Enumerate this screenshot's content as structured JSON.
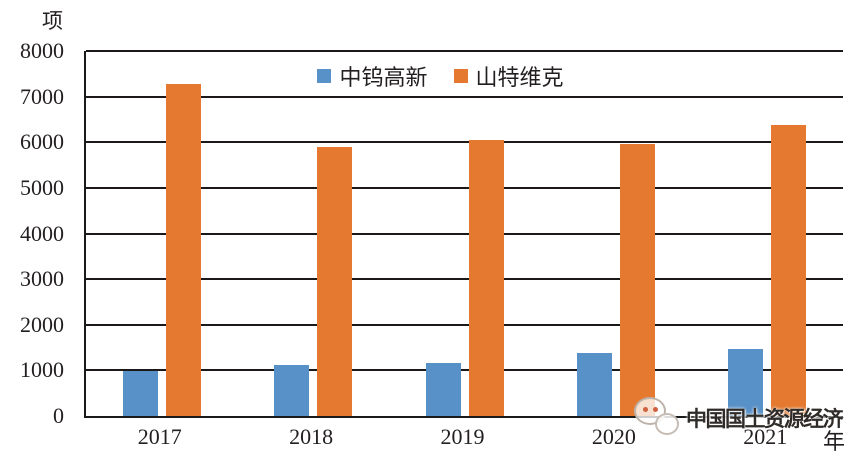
{
  "chart_data": {
    "type": "bar",
    "title": "",
    "categories": [
      "2017",
      "2018",
      "2019",
      "2020",
      "2021"
    ],
    "series": [
      {
        "name": "中钨高新",
        "color": "#5890C8",
        "values": [
          980,
          1120,
          1170,
          1390,
          1470
        ]
      },
      {
        "name": "山特维克",
        "color": "#E4792F",
        "values": [
          7280,
          5890,
          6060,
          5960,
          6370
        ]
      }
    ],
    "xlabel": "年",
    "ylabel": "项",
    "ylim": [
      0,
      8000
    ],
    "ytick_step": 1000,
    "grid": true,
    "legend_position": "top-center",
    "axis_color": "#1c1719"
  },
  "watermark": {
    "text": "中国国土资源经济",
    "logo": "wechat-chat-bubbles-logo"
  }
}
